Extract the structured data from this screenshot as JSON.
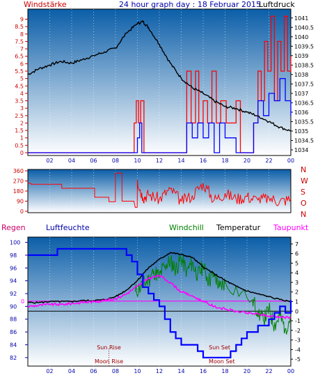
{
  "header": {
    "left_label": "Windstärke",
    "title": "24 hour graph day : 18 Februar 2015",
    "right_label": "Luftdruck"
  },
  "colors": {
    "background_top": "#0b5ea8",
    "background_bottom": "#ffffff",
    "axis_red": "#cc0000",
    "axis_blue": "#0000aa",
    "wind_red": "#ff0000",
    "wind_blue": "#0000ff",
    "pressure_black": "#000000",
    "temperature_black": "#000000",
    "dewpoint_magenta": "#ff00ff",
    "windchill_green": "#008000",
    "humidity_blue": "#0000ff",
    "astro_red": "#a00000"
  },
  "chart_data": [
    {
      "type": "line",
      "name": "wind-and-pressure",
      "xlabel": "",
      "x_ticks": [
        "02",
        "04",
        "06",
        "08",
        "10",
        "12",
        "14",
        "16",
        "18",
        "20",
        "22",
        "00"
      ],
      "left_axis": {
        "label": "Windstärke",
        "ticks": [
          "0",
          "0.5",
          "1",
          "1.5",
          "2",
          "2.5",
          "3",
          "3.5",
          "4",
          "4.5",
          "5",
          "5.5",
          "6",
          "6.5",
          "7",
          "7.5",
          "8",
          "8.5",
          "9"
        ],
        "ylim": [
          0,
          9.4
        ]
      },
      "right_axis": {
        "label": "Luftdruck",
        "ticks": [
          "1034",
          "1034.5",
          "1035",
          "1035.5",
          "1036",
          "1036.5",
          "1037",
          "1037.5",
          "1038",
          "1038.5",
          "1039",
          "1039.5",
          "1040",
          "1040.5",
          "1041"
        ],
        "ylim": [
          1033.85,
          1041.25
        ]
      },
      "series": [
        {
          "name": "Luftdruck",
          "axis": "right",
          "x": [
            0,
            1,
            2,
            3,
            4,
            5,
            6,
            7,
            8,
            9,
            10,
            10.5,
            11,
            12,
            13,
            14,
            15,
            16,
            17,
            18,
            19,
            20,
            21,
            22,
            23,
            24
          ],
          "values": [
            1038.0,
            1038.3,
            1038.5,
            1038.7,
            1038.6,
            1038.8,
            1039.0,
            1039.2,
            1039.4,
            1040.2,
            1040.7,
            1040.8,
            1040.5,
            1039.6,
            1038.6,
            1037.8,
            1037.3,
            1037.0,
            1036.6,
            1036.3,
            1036.2,
            1036.0,
            1035.8,
            1035.5,
            1035.2,
            1035.0
          ]
        },
        {
          "name": "gusts",
          "axis": "left",
          "x": [
            0,
            9.6,
            9.7,
            9.9,
            10.1,
            10.3,
            10.6,
            14.2,
            14.5,
            14.9,
            15.3,
            15.6,
            16.0,
            16.4,
            16.8,
            17.2,
            17.6,
            18.1,
            18.6,
            19.0,
            19.4,
            20.0,
            20.6,
            21.0,
            21.3,
            21.6,
            21.9,
            22.2,
            22.5,
            22.8,
            23.1,
            23.4,
            23.7,
            24.0
          ],
          "values": [
            0,
            0,
            2.0,
            3.5,
            2.0,
            3.5,
            0,
            0,
            5.5,
            2.0,
            5.5,
            2.0,
            3.5,
            2.0,
            5.5,
            2.0,
            3.5,
            2.0,
            2.0,
            3.5,
            0,
            0,
            2.0,
            5.5,
            3.5,
            7.5,
            5.5,
            9.2,
            3.5,
            7.5,
            5.5,
            9.2,
            5.5,
            6.5
          ]
        },
        {
          "name": "average",
          "axis": "left",
          "x": [
            0,
            9.9,
            10.0,
            10.2,
            10.4,
            14.3,
            14.5,
            15.0,
            15.5,
            16.0,
            16.5,
            17.0,
            17.5,
            18.0,
            19.0,
            20.0,
            20.6,
            21.0,
            21.5,
            22.0,
            22.5,
            23.0,
            23.5,
            24.0
          ],
          "values": [
            0,
            0,
            1.0,
            2.0,
            0,
            0,
            2.0,
            1.0,
            2.0,
            1.0,
            2.0,
            0,
            2.0,
            1.0,
            0,
            0,
            2.0,
            3.5,
            2.5,
            4.0,
            3.5,
            5.0,
            3.5,
            2.5
          ]
        }
      ]
    },
    {
      "type": "line",
      "name": "wind-direction",
      "left_axis": {
        "ticks": [
          "0",
          "90",
          "180",
          "270",
          "360"
        ],
        "ylim": [
          0,
          360
        ]
      },
      "right_axis": {
        "ticks": [
          "N",
          "W",
          "S",
          "O",
          "N"
        ]
      },
      "series": [
        {
          "name": "direction",
          "x": [
            0,
            0.3,
            3.0,
            3.1,
            6.0,
            6.1,
            7.3,
            7.4,
            7.9,
            8.0,
            8.5,
            8.6,
            9.8,
            10.0,
            10.5,
            11.0,
            12.0,
            13.0,
            14.0,
            15.0,
            16.0,
            17.0,
            18.0,
            19.0,
            20.0,
            21.0,
            22.0,
            23.0,
            24.0
          ],
          "values": [
            250,
            240,
            240,
            205,
            205,
            125,
            125,
            85,
            85,
            340,
            340,
            90,
            35,
            280,
            120,
            150,
            110,
            200,
            90,
            140,
            250,
            100,
            160,
            110,
            130,
            100,
            120,
            90,
            110
          ]
        }
      ]
    },
    {
      "type": "line",
      "name": "temperature-humidity",
      "header_labels": {
        "rain": "Regen",
        "humidity": "Luftfeuchte",
        "windchill": "Windchill",
        "temperature": "Temperatur",
        "dewpoint": "Taupunkt"
      },
      "left_axis": {
        "ticks": [
          "82",
          "84",
          "86",
          "88",
          "90",
          "92",
          "94",
          "96",
          "98",
          "100"
        ],
        "ylim": [
          81,
          100.5
        ]
      },
      "right_axis": {
        "ticks": [
          "-5",
          "-4",
          "-3",
          "-2",
          "-1",
          "0",
          "1",
          "2",
          "3",
          "4",
          "5",
          "6",
          "7"
        ],
        "ylim": [
          -5.5,
          7.5
        ]
      },
      "zero_marker": "0",
      "series": [
        {
          "name": "Temperatur",
          "x": [
            0,
            1,
            2,
            3,
            4,
            5,
            6,
            7,
            8,
            9,
            10,
            11,
            12,
            13,
            14,
            15,
            16,
            17,
            18,
            19,
            20,
            21,
            22,
            23,
            24
          ],
          "values": [
            0.9,
            0.9,
            1.0,
            1.0,
            1.0,
            1.1,
            1.1,
            1.2,
            1.5,
            2.2,
            3.2,
            4.5,
            5.4,
            6.1,
            5.9,
            5.6,
            4.6,
            3.9,
            3.2,
            2.6,
            2.1,
            1.8,
            1.5,
            1.2,
            1.0
          ]
        },
        {
          "name": "Taupunkt",
          "x": [
            0,
            1,
            2,
            3,
            4,
            5,
            6,
            7,
            8,
            9,
            10,
            11,
            12,
            13,
            14,
            15,
            16,
            17,
            18,
            19,
            20,
            21,
            22,
            23,
            24
          ],
          "values": [
            0.5,
            0.6,
            0.7,
            0.7,
            0.8,
            0.9,
            1.0,
            1.1,
            1.3,
            1.8,
            2.6,
            3.4,
            3.7,
            3.0,
            2.0,
            1.6,
            1.0,
            0.5,
            0.2,
            0.0,
            -0.2,
            -0.3,
            -0.5,
            -0.6,
            -0.7
          ]
        },
        {
          "name": "Windchill",
          "x": [
            9.8,
            10.5,
            11.0,
            11.5,
            12.0,
            12.5,
            13.0,
            13.5,
            14.0,
            14.5,
            15.0,
            15.5,
            16.0,
            16.5,
            17.0,
            17.5,
            18.0,
            20.5,
            21.0,
            21.5,
            22.0,
            22.5,
            23.0,
            23.5,
            24.0
          ],
          "values": [
            2.0,
            2.8,
            3.2,
            4.2,
            3.6,
            4.8,
            5.2,
            4.4,
            5.5,
            4.2,
            5.0,
            3.8,
            4.6,
            3.2,
            3.9,
            2.5,
            3.0,
            1.2,
            0.0,
            -1.0,
            0.2,
            -1.5,
            -0.5,
            -1.8,
            -0.5
          ]
        },
        {
          "name": "Luftfeuchte",
          "x": [
            0,
            2.6,
            2.7,
            8.5,
            9.0,
            9.5,
            10.0,
            10.5,
            11.0,
            11.5,
            12.0,
            12.5,
            13.0,
            13.5,
            14.0,
            15.0,
            15.5,
            16.0,
            17.0,
            18.0,
            18.5,
            19.0,
            19.5,
            20.0,
            21.0,
            22.0,
            22.5,
            23.0,
            23.5,
            24.0
          ],
          "values": [
            98,
            98,
            99,
            99,
            98,
            97,
            95,
            93,
            92,
            91,
            90,
            88,
            86,
            85,
            84,
            84,
            83,
            82,
            82,
            82,
            83,
            84,
            85,
            86,
            87,
            88,
            89,
            90,
            89,
            91
          ]
        }
      ],
      "annotations": [
        {
          "label": "Sun Rise",
          "x": 7.4
        },
        {
          "label": "Moon Rise",
          "x": 7.4
        },
        {
          "label": "Sun Set",
          "x": 17.5
        },
        {
          "label": "Moon Set",
          "x": 17.7
        }
      ]
    }
  ]
}
